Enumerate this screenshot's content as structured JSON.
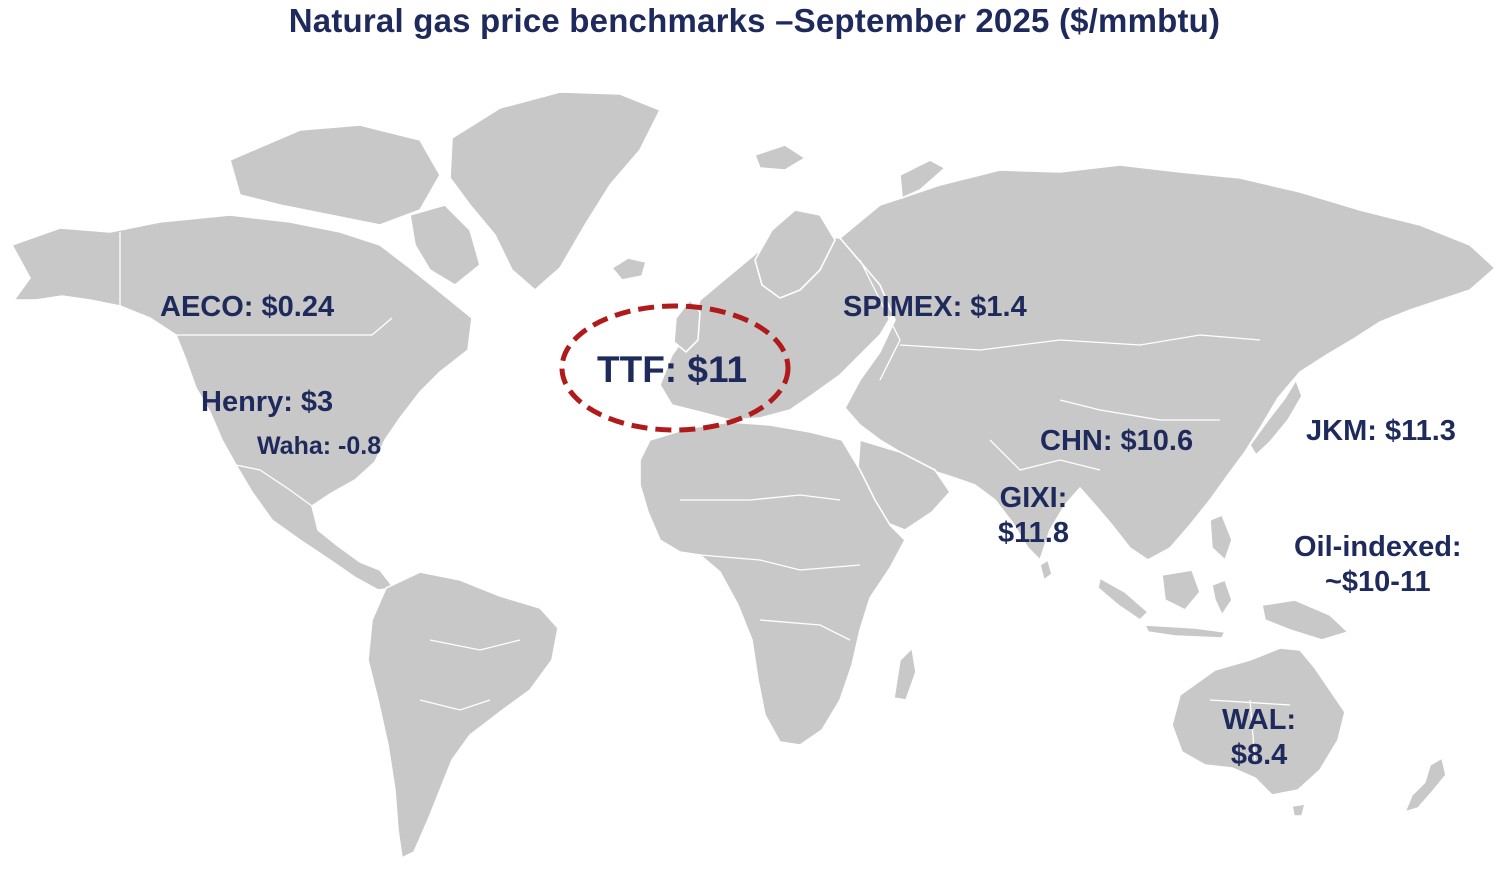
{
  "title": "Natural gas price benchmarks –September 2025 ($/mmbtu)",
  "colors": {
    "text": "#1f2a5c",
    "land": "#c8c8c8",
    "highlight": "#b01a1a"
  },
  "benchmarks": {
    "aeco": {
      "name": "AECO",
      "price": "AECO: $0.24"
    },
    "henry": {
      "name": "Henry",
      "price": "Henry: $3"
    },
    "waha": {
      "name": "Waha",
      "price": "Waha: -0.8"
    },
    "ttf": {
      "name": "TTF",
      "price": "TTF: $11",
      "highlighted": true
    },
    "spimex": {
      "name": "SPIMEX",
      "price": "SPIMEX: $1.4"
    },
    "chn": {
      "name": "CHN",
      "price": "CHN: $10.6"
    },
    "gixi": {
      "line1": "GIXI:",
      "line2": "$11.8"
    },
    "jkm": {
      "name": "JKM",
      "price": "JKM: $11.3"
    },
    "oil": {
      "line1": "Oil-indexed:",
      "line2": "~$10-11"
    },
    "wal": {
      "line1": "WAL:",
      "line2": "$8.4"
    }
  }
}
